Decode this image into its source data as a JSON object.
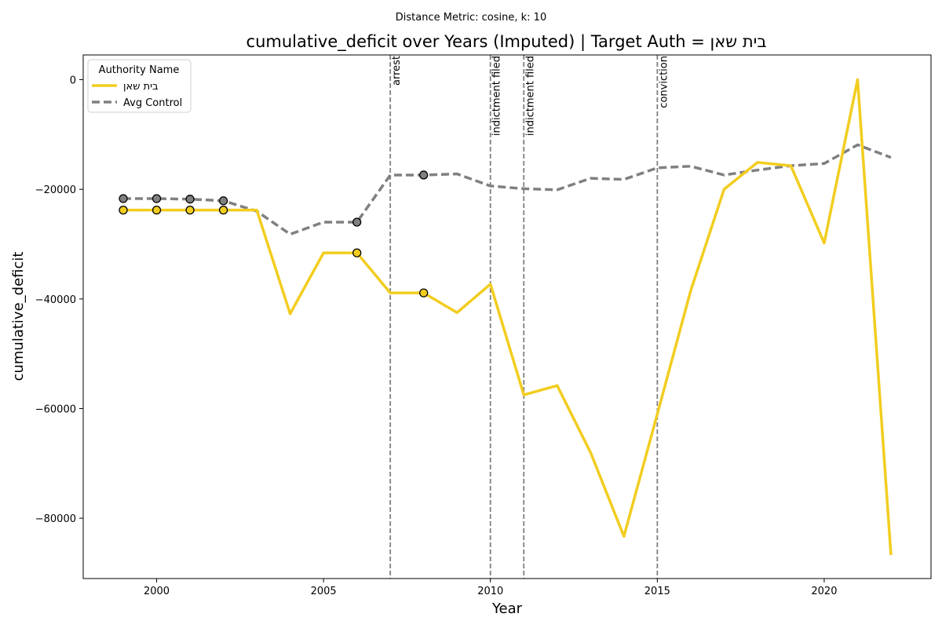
{
  "chart_data": {
    "type": "line",
    "suptitle": "Distance Metric: cosine, k: 10",
    "title": "cumulative_deficit over Years (Imputed) | Target Auth = בית שאן",
    "xlabel": "Year",
    "ylabel": "cumulative_deficit",
    "xlim": [
      1997.8,
      2023.2
    ],
    "ylim": [
      -91000,
      4500
    ],
    "x_ticks": [
      2000,
      2005,
      2010,
      2015,
      2020
    ],
    "y_ticks": [
      0,
      -20000,
      -40000,
      -60000,
      -80000
    ],
    "x_tick_labels": [
      "2000",
      "2005",
      "2010",
      "2015",
      "2020"
    ],
    "y_tick_labels": [
      "0",
      "−20000",
      "−40000",
      "−60000",
      "−80000"
    ],
    "grid": false,
    "legend": {
      "title": "Authority Name",
      "placement": "top-left"
    },
    "series": [
      {
        "name": "בית שאן",
        "color": "#f2cd1f",
        "style": "solid",
        "x": [
          1999,
          2000,
          2001,
          2002,
          2003,
          2004,
          2005,
          2006,
          2007,
          2008,
          2009,
          2010,
          2011,
          2012,
          2013,
          2014,
          2015,
          2016,
          2017,
          2018,
          2019,
          2020,
          2021,
          2022
        ],
        "y": [
          -23800,
          -23800,
          -23800,
          -23800,
          -23800,
          -42700,
          -31600,
          -31600,
          -38900,
          -38900,
          -42500,
          -37300,
          -57500,
          -55800,
          -68000,
          -83300,
          -61000,
          -38500,
          -20000,
          -15100,
          -15700,
          -29800,
          0,
          -86700
        ],
        "imputed_x": [
          1999,
          2000,
          2001,
          2002,
          2006,
          2008
        ],
        "imputed_y": [
          -23800,
          -23800,
          -23800,
          -23800,
          -31600,
          -38900
        ]
      },
      {
        "name": "Avg Control",
        "color": "#808080",
        "style": "dashed",
        "x": [
          1999,
          2000,
          2001,
          2002,
          2003,
          2004,
          2005,
          2006,
          2007,
          2008,
          2009,
          2010,
          2011,
          2012,
          2013,
          2014,
          2015,
          2016,
          2017,
          2018,
          2019,
          2020,
          2021,
          2022
        ],
        "y": [
          -21700,
          -21700,
          -21800,
          -22100,
          -24000,
          -28200,
          -26000,
          -26000,
          -17400,
          -17400,
          -17200,
          -19400,
          -19900,
          -20100,
          -18000,
          -18200,
          -16100,
          -15800,
          -17400,
          -16500,
          -15700,
          -15300,
          -11900,
          -14200
        ],
        "imputed_x": [
          1999,
          2000,
          2001,
          2002,
          2006,
          2008
        ],
        "imputed_y": [
          -21700,
          -21700,
          -21800,
          -22100,
          -26000,
          -17400
        ]
      }
    ],
    "events": [
      {
        "x": 2007,
        "label": "arrest"
      },
      {
        "x": 2010,
        "label": "indictment filed"
      },
      {
        "x": 2011,
        "label": "indictment filed"
      },
      {
        "x": 2015,
        "label": "conviction"
      }
    ]
  }
}
